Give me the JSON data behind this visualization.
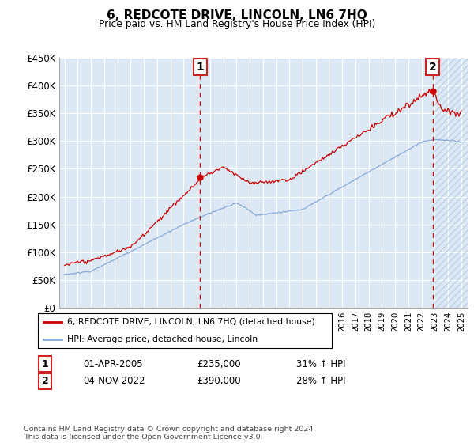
{
  "title": "6, REDCOTE DRIVE, LINCOLN, LN6 7HQ",
  "subtitle": "Price paid vs. HM Land Registry's House Price Index (HPI)",
  "ylim": [
    0,
    450000
  ],
  "yticks": [
    0,
    50000,
    100000,
    150000,
    200000,
    250000,
    300000,
    350000,
    400000,
    450000
  ],
  "ytick_labels": [
    "£0",
    "£50K",
    "£100K",
    "£150K",
    "£200K",
    "£250K",
    "£300K",
    "£350K",
    "£400K",
    "£450K"
  ],
  "xlim_start": 1994.6,
  "xlim_end": 2025.5,
  "sale1_x": 2005.25,
  "sale1_y": 235000,
  "sale2_x": 2022.84,
  "sale2_y": 390000,
  "sale1_label": "01-APR-2005",
  "sale1_price": "£235,000",
  "sale1_hpi": "31% ↑ HPI",
  "sale2_label": "04-NOV-2022",
  "sale2_price": "£390,000",
  "sale2_hpi": "28% ↑ HPI",
  "legend1": "6, REDCOTE DRIVE, LINCOLN, LN6 7HQ (detached house)",
  "legend2": "HPI: Average price, detached house, Lincoln",
  "footer": "Contains HM Land Registry data © Crown copyright and database right 2024.\nThis data is licensed under the Open Government Licence v3.0.",
  "plot_bg": "#dce9f5",
  "line_red": "#cc0000",
  "line_blue": "#88aadd",
  "grid_color": "#ffffff",
  "hatch_color": "#b0c8e0"
}
